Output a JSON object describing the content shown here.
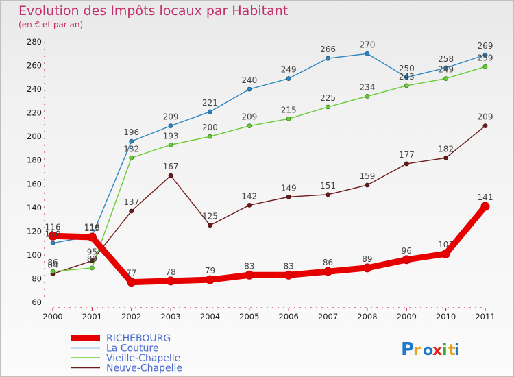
{
  "chart_data": {
    "type": "line",
    "title": "Evolution des Impôts locaux par Habitant",
    "subtitle": "(en € et par an)",
    "x": [
      "2000",
      "2001",
      "2002",
      "2003",
      "2004",
      "2005",
      "2006",
      "2007",
      "2008",
      "2009",
      "2010",
      "2011"
    ],
    "ylim": [
      60,
      280
    ],
    "yticks": [
      60,
      80,
      100,
      120,
      140,
      160,
      180,
      200,
      220,
      240,
      260,
      280
    ],
    "grid": false,
    "legend_position": "bottom-left",
    "series": [
      {
        "name": "RICHEBOURG",
        "color": "#e60000",
        "values": [
          116,
          115,
          77,
          78,
          79,
          83,
          83,
          86,
          89,
          96,
          101,
          141
        ]
      },
      {
        "name": "La Couture",
        "color": "#2e86c1",
        "values": [
          110,
          116,
          196,
          209,
          221,
          240,
          249,
          266,
          270,
          250,
          258,
          269
        ]
      },
      {
        "name": "Vieille-Chapelle",
        "color": "#66cc33",
        "values": [
          86,
          89,
          182,
          193,
          200,
          209,
          215,
          225,
          234,
          243,
          249,
          259
        ]
      },
      {
        "name": "Neuve-Chapelle",
        "color": "#6b1a1a",
        "values": [
          84,
          95,
          137,
          167,
          125,
          142,
          149,
          151,
          159,
          177,
          182,
          209
        ]
      }
    ]
  },
  "logo": {
    "text": "Proxiti",
    "colors": [
      "#1f78c8",
      "#e8a21a",
      "#3aaa35",
      "#e2231a"
    ]
  }
}
